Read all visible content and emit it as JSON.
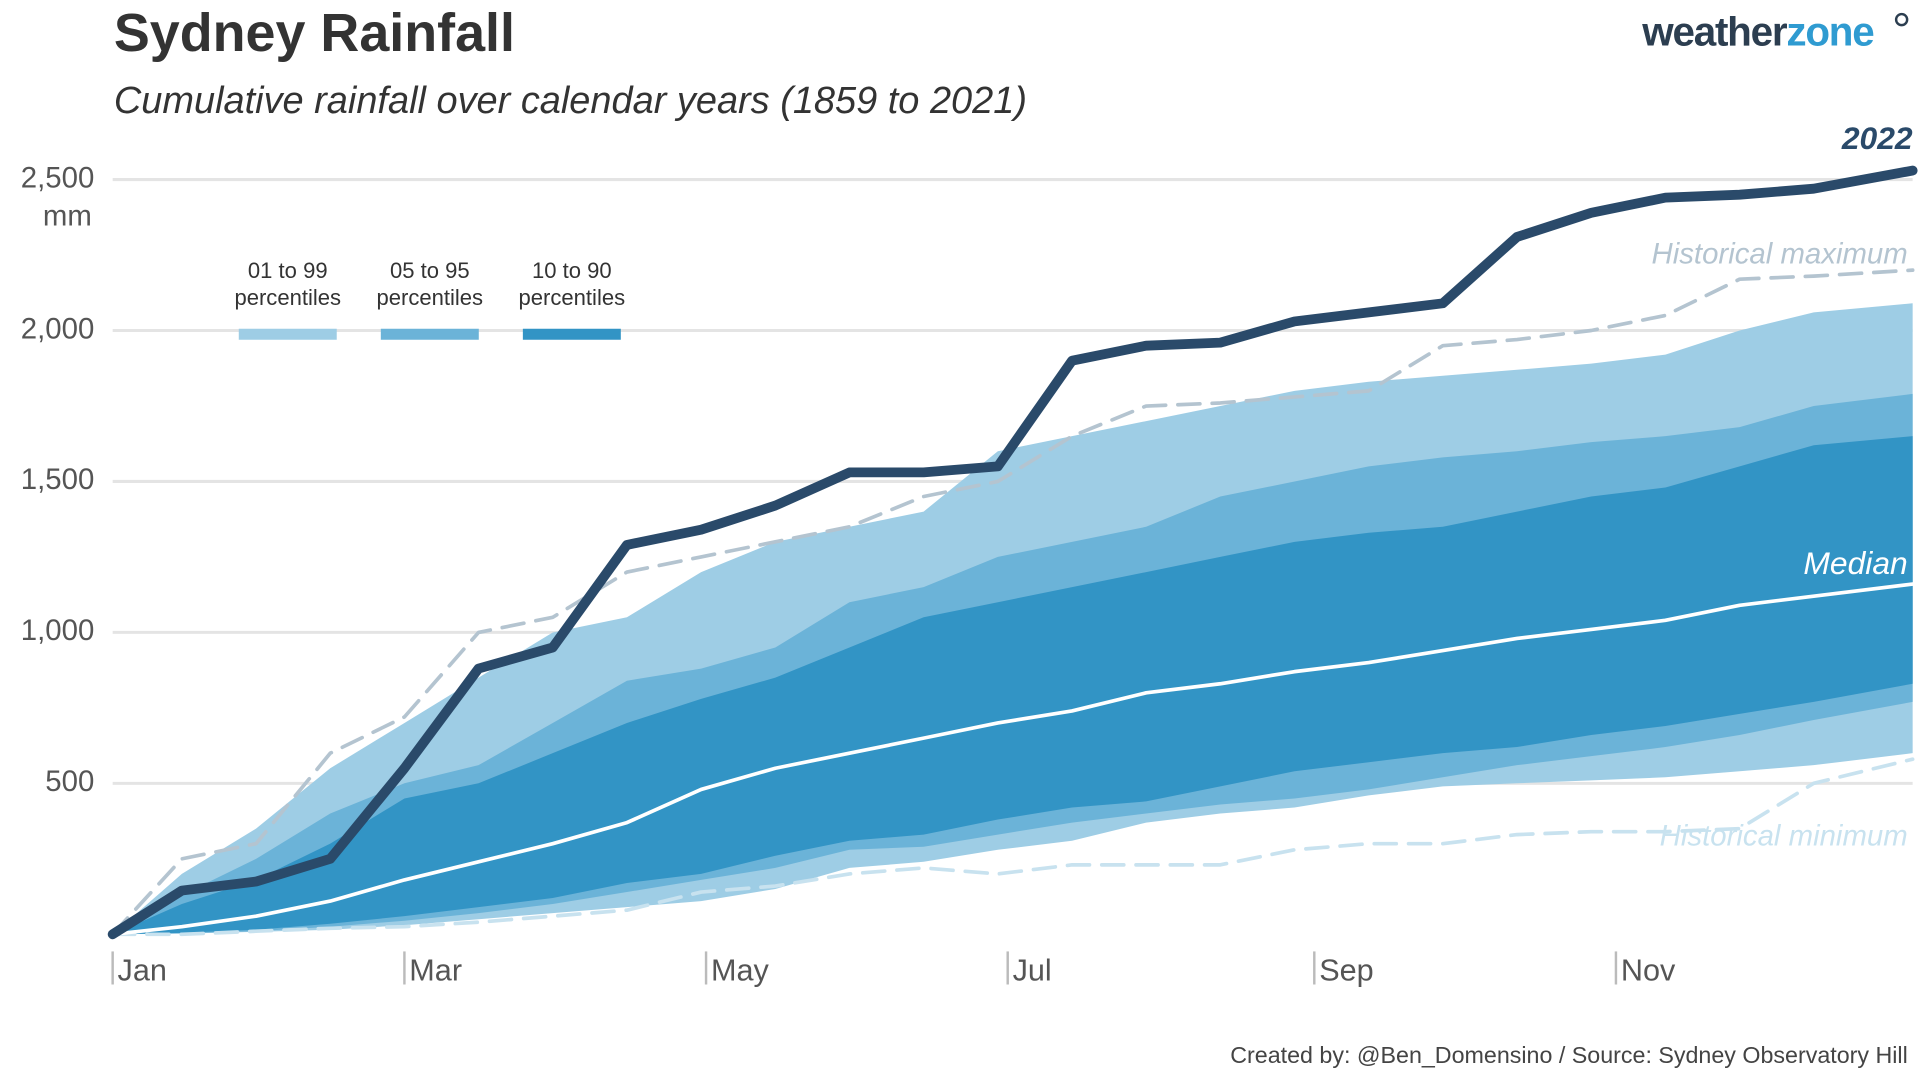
{
  "chart_data": {
    "type": "cumulative-band",
    "title": "Sydney Rainfall",
    "subtitle": "Cumulative rainfall over calendar years (1859 to 2021)",
    "y_unit": "mm",
    "logo": {
      "part1": "weather",
      "part2": "zone"
    },
    "footnote": "Created by: @Ben_Domensino / Source: Sydney Observatory Hill",
    "xlim": [
      1,
      365
    ],
    "xticks": [
      {
        "value": 1,
        "label": "Jan"
      },
      {
        "value": 60,
        "label": "Mar"
      },
      {
        "value": 121,
        "label": "May"
      },
      {
        "value": 182,
        "label": "Jul"
      },
      {
        "value": 244,
        "label": "Sep"
      },
      {
        "value": 305,
        "label": "Nov"
      }
    ],
    "ylim": [
      0,
      2600
    ],
    "yticks": [
      500,
      {
        "value": 1000,
        "label": "1,000"
      },
      {
        "value": 1500,
        "label": "1,500"
      },
      {
        "value": 2000,
        "label": "2,000"
      },
      {
        "value": 2500,
        "label": "2,500"
      }
    ],
    "grid": true,
    "x": [
      1,
      15,
      30,
      45,
      60,
      75,
      90,
      105,
      120,
      135,
      150,
      165,
      180,
      195,
      210,
      225,
      240,
      255,
      270,
      285,
      300,
      315,
      330,
      345,
      365
    ],
    "bands": [
      {
        "name": "01 to 99 percentiles",
        "color": "#9ecde5",
        "lower": [
          0,
          2,
          8,
          15,
          30,
          50,
          70,
          90,
          110,
          150,
          220,
          240,
          280,
          310,
          370,
          400,
          420,
          460,
          490,
          500,
          510,
          520,
          540,
          560,
          600
        ],
        "upper": [
          0,
          200,
          350,
          550,
          700,
          850,
          1000,
          1050,
          1200,
          1300,
          1350,
          1400,
          1600,
          1650,
          1700,
          1750,
          1800,
          1830,
          1850,
          1870,
          1890,
          1920,
          2000,
          2060,
          2090
        ]
      },
      {
        "name": "05 to 95 percentiles",
        "color": "#6bb3d8",
        "lower": [
          0,
          3,
          10,
          25,
          45,
          70,
          100,
          140,
          180,
          220,
          280,
          290,
          330,
          370,
          400,
          430,
          450,
          480,
          520,
          560,
          590,
          620,
          660,
          710,
          770
        ],
        "upper": [
          0,
          130,
          250,
          400,
          500,
          560,
          700,
          840,
          880,
          950,
          1100,
          1150,
          1250,
          1300,
          1350,
          1450,
          1500,
          1550,
          1580,
          1600,
          1630,
          1650,
          1680,
          1750,
          1790
        ]
      },
      {
        "name": "10 to 90 percentiles",
        "color": "#3294c5",
        "lower": [
          0,
          5,
          15,
          35,
          60,
          90,
          120,
          170,
          200,
          260,
          310,
          330,
          380,
          420,
          440,
          490,
          540,
          570,
          600,
          620,
          660,
          690,
          730,
          770,
          830
        ],
        "upper": [
          0,
          100,
          180,
          300,
          450,
          500,
          600,
          700,
          780,
          850,
          950,
          1050,
          1100,
          1150,
          1200,
          1250,
          1300,
          1330,
          1350,
          1400,
          1450,
          1480,
          1550,
          1620,
          1650
        ]
      }
    ],
    "series": [
      {
        "name": "Historical maximum",
        "color": "#b4c4d0",
        "dashed": true,
        "values": [
          0,
          250,
          300,
          600,
          720,
          1000,
          1050,
          1200,
          1250,
          1300,
          1350,
          1450,
          1500,
          1650,
          1750,
          1760,
          1780,
          1800,
          1950,
          1970,
          2000,
          2050,
          2170,
          2180,
          2200
        ]
      },
      {
        "name": "Historical minimum",
        "color": "#c8e2ef",
        "dashed": true,
        "values": [
          0,
          0,
          10,
          20,
          25,
          40,
          60,
          80,
          140,
          160,
          200,
          220,
          200,
          230,
          230,
          230,
          280,
          300,
          300,
          330,
          340,
          340,
          350,
          500,
          580
        ]
      },
      {
        "name": "Median",
        "color": "#ffffff",
        "dashed": false,
        "values": [
          0,
          25,
          60,
          110,
          180,
          240,
          300,
          370,
          480,
          550,
          600,
          650,
          700,
          740,
          800,
          830,
          870,
          900,
          940,
          980,
          1010,
          1040,
          1090,
          1120,
          1160
        ]
      },
      {
        "name": "2022",
        "color": "#2a4a6a",
        "dashed": false,
        "values": [
          0,
          145,
          175,
          250,
          550,
          880,
          950,
          1290,
          1340,
          1420,
          1530,
          1530,
          1550,
          1900,
          1950,
          1960,
          2030,
          2060,
          2090,
          2310,
          2390,
          2440,
          2450,
          2470,
          2530
        ]
      }
    ]
  }
}
